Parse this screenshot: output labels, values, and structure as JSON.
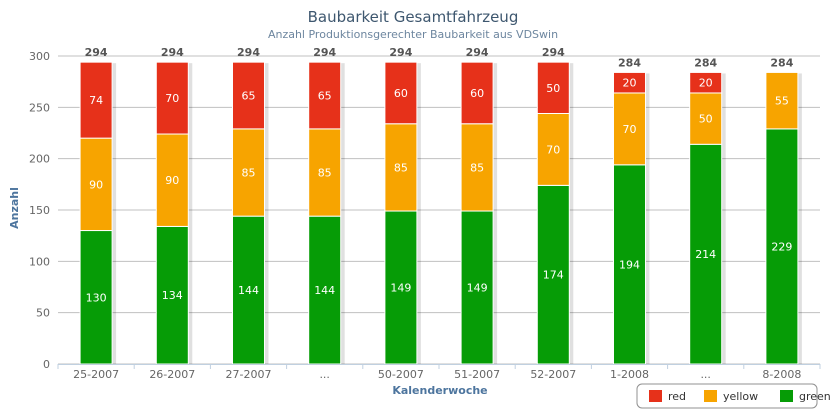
{
  "chart_data": {
    "type": "bar",
    "stacked": true,
    "title": "Baubarkeit Gesamtfahrzeug",
    "subtitle": "Anzahl Produktionsgerechter Baubarkeit aus VDSwin",
    "xlabel": "Kalenderwoche",
    "ylabel": "Anzahl",
    "ylim": [
      0,
      300
    ],
    "yticks": [
      0,
      50,
      100,
      150,
      200,
      250,
      300
    ],
    "grid": true,
    "legend_position": "bottom-right",
    "categories": [
      "25-2007",
      "26-2007",
      "27-2007",
      "...",
      "50-2007",
      "51-2007",
      "52-2007",
      "1-2008",
      "...",
      "8-2008"
    ],
    "series": [
      {
        "name": "green",
        "color": "#069c06",
        "values": [
          130,
          134,
          144,
          144,
          149,
          149,
          174,
          194,
          214,
          229
        ]
      },
      {
        "name": "yellow",
        "color": "#f7a400",
        "values": [
          90,
          90,
          85,
          85,
          85,
          85,
          70,
          70,
          50,
          55
        ]
      },
      {
        "name": "red",
        "color": "#e6311a",
        "values": [
          74,
          70,
          65,
          65,
          60,
          60,
          50,
          20,
          20,
          0
        ]
      }
    ],
    "totals": [
      294,
      294,
      294,
      294,
      294,
      294,
      294,
      284,
      284,
      284
    ]
  }
}
